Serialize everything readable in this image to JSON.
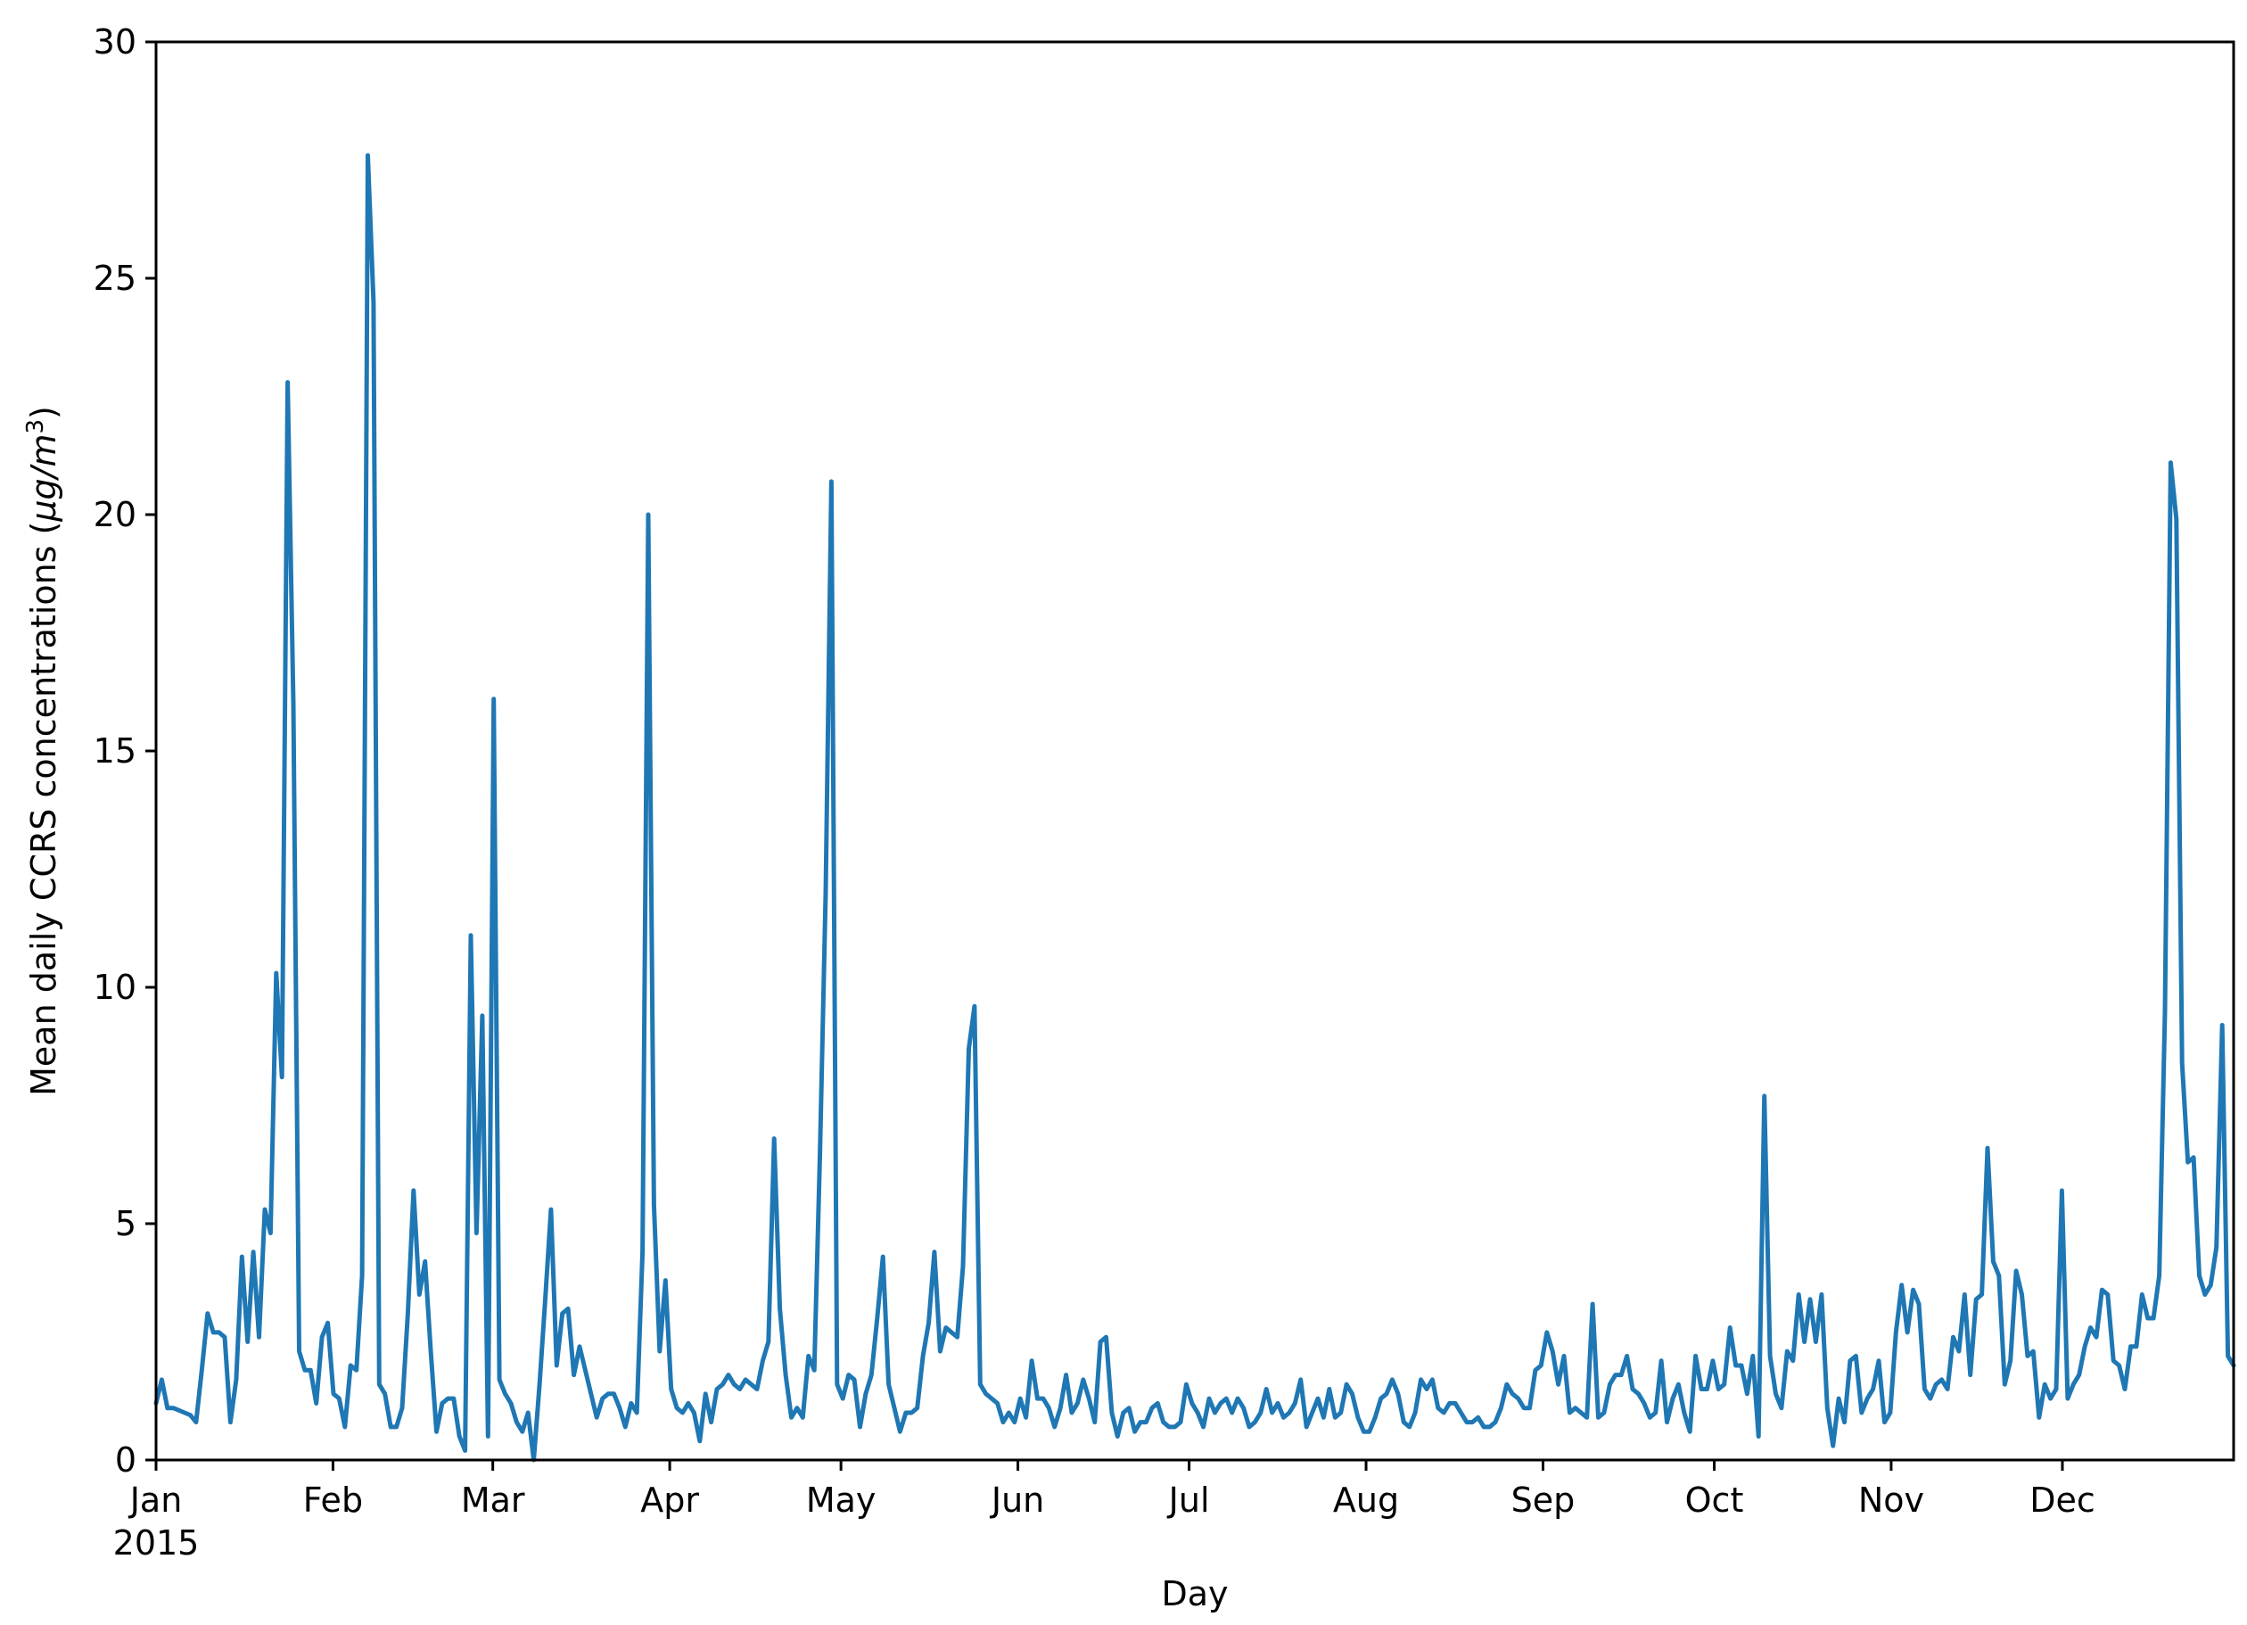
{
  "chart_data": {
    "type": "line",
    "xlabel": "Day",
    "ylabel": "Mean daily CCRS concentrations (μg/m³)",
    "ylabel_parts": {
      "main": "Mean daily CCRS concentrations (",
      "unit_base": "μg/m",
      "unit_exp": "3",
      "close": ")"
    },
    "ylim": [
      0,
      30
    ],
    "yticks": [
      0,
      5,
      10,
      15,
      20,
      25,
      30
    ],
    "x_range": [
      "2015-01-01",
      "2015-12-31"
    ],
    "xticks": [
      {
        "date": "2015-01-01",
        "label": "Jan",
        "sublabel": "2015"
      },
      {
        "date": "2015-02-01",
        "label": "Feb"
      },
      {
        "date": "2015-03-01",
        "label": "Mar"
      },
      {
        "date": "2015-04-01",
        "label": "Apr"
      },
      {
        "date": "2015-05-01",
        "label": "May"
      },
      {
        "date": "2015-06-01",
        "label": "Jun"
      },
      {
        "date": "2015-07-01",
        "label": "Jul"
      },
      {
        "date": "2015-08-01",
        "label": "Aug"
      },
      {
        "date": "2015-09-01",
        "label": "Sep"
      },
      {
        "date": "2015-10-01",
        "label": "Oct"
      },
      {
        "date": "2015-11-01",
        "label": "Nov"
      },
      {
        "date": "2015-12-01",
        "label": "Dec"
      }
    ],
    "grid": false,
    "line_color": "#1f77b4",
    "series": [
      {
        "x_start": "2015-01-01",
        "x_step_days": 1,
        "values": [
          1.2,
          1.7,
          1.1,
          1.1,
          1.05,
          1.0,
          0.95,
          0.8,
          1.9,
          3.1,
          2.7,
          2.7,
          2.6,
          0.8,
          1.7,
          4.3,
          2.5,
          4.4,
          2.6,
          5.3,
          4.8,
          10.3,
          8.1,
          22.8,
          16.0,
          2.3,
          1.9,
          1.9,
          1.2,
          2.6,
          2.9,
          1.4,
          1.3,
          0.7,
          2.0,
          1.9,
          3.9,
          27.6,
          24.5,
          1.6,
          1.4,
          0.7,
          0.7,
          1.1,
          3.1,
          5.7,
          3.5,
          4.2,
          2.3,
          0.6,
          1.2,
          1.3,
          1.3,
          0.5,
          0.2,
          11.1,
          4.8,
          9.4,
          0.5,
          16.1,
          1.7,
          1.4,
          1.2,
          0.8,
          0.6,
          1.0,
          0.0,
          1.6,
          3.4,
          5.3,
          2.0,
          3.1,
          3.2,
          1.8,
          2.4,
          1.9,
          1.4,
          0.9,
          1.3,
          1.4,
          1.4,
          1.1,
          0.7,
          1.2,
          1.0,
          4.4,
          20.0,
          5.4,
          2.3,
          3.8,
          1.5,
          1.1,
          1.0,
          1.2,
          1.0,
          0.4,
          1.4,
          0.8,
          1.5,
          1.6,
          1.8,
          1.6,
          1.5,
          1.7,
          1.6,
          1.5,
          2.1,
          2.5,
          6.8,
          3.2,
          1.8,
          0.9,
          1.1,
          0.9,
          2.2,
          1.9,
          6.5,
          12.0,
          20.7,
          1.6,
          1.3,
          1.8,
          1.7,
          0.7,
          1.4,
          1.8,
          3.0,
          4.3,
          1.6,
          1.1,
          0.6,
          1.0,
          1.0,
          1.1,
          2.2,
          2.9,
          4.4,
          2.3,
          2.8,
          2.7,
          2.6,
          4.1,
          8.7,
          9.6,
          1.6,
          1.4,
          1.3,
          1.2,
          0.8,
          1.0,
          0.8,
          1.3,
          0.9,
          2.1,
          1.3,
          1.3,
          1.1,
          0.7,
          1.1,
          1.8,
          1.0,
          1.2,
          1.7,
          1.3,
          0.8,
          2.5,
          2.6,
          1.0,
          0.5,
          1.0,
          1.1,
          0.6,
          0.8,
          0.8,
          1.1,
          1.2,
          0.8,
          0.7,
          0.7,
          0.8,
          1.6,
          1.2,
          1.0,
          0.7,
          1.3,
          1.0,
          1.2,
          1.3,
          1.0,
          1.3,
          1.1,
          0.7,
          0.8,
          1.0,
          1.5,
          1.0,
          1.2,
          0.9,
          1.0,
          1.2,
          1.7,
          0.7,
          1.0,
          1.3,
          0.9,
          1.5,
          0.9,
          1.0,
          1.6,
          1.4,
          0.9,
          0.6,
          0.6,
          0.9,
          1.3,
          1.4,
          1.7,
          1.4,
          0.8,
          0.7,
          1.0,
          1.7,
          1.5,
          1.7,
          1.1,
          1.0,
          1.2,
          1.2,
          1.0,
          0.8,
          0.8,
          0.9,
          0.7,
          0.7,
          0.8,
          1.1,
          1.6,
          1.4,
          1.3,
          1.1,
          1.1,
          1.9,
          2.0,
          2.7,
          2.3,
          1.6,
          2.2,
          1.0,
          1.1,
          1.0,
          0.9,
          3.3,
          0.9,
          1.0,
          1.6,
          1.8,
          1.8,
          2.2,
          1.5,
          1.4,
          1.2,
          0.9,
          1.0,
          2.1,
          0.8,
          1.3,
          1.6,
          1.0,
          0.6,
          2.2,
          1.5,
          1.5,
          2.1,
          1.5,
          1.6,
          2.8,
          2.0,
          2.0,
          1.4,
          2.2,
          0.5,
          7.7,
          2.2,
          1.4,
          1.1,
          2.3,
          2.1,
          3.5,
          2.5,
          3.4,
          2.5,
          3.5,
          1.1,
          0.3,
          1.3,
          0.8,
          2.1,
          2.2,
          1.0,
          1.3,
          1.5,
          2.1,
          0.8,
          1.0,
          2.7,
          3.7,
          2.7,
          3.6,
          3.3,
          1.5,
          1.3,
          1.6,
          1.7,
          1.5,
          2.6,
          2.3,
          3.5,
          1.8,
          3.4,
          3.5,
          6.6,
          4.2,
          3.9,
          1.6,
          2.1,
          4.0,
          3.5,
          2.2,
          2.3,
          0.9,
          1.6,
          1.3,
          1.5,
          5.7,
          1.3,
          1.6,
          1.8,
          2.4,
          2.8,
          2.6,
          3.6,
          3.5,
          2.1,
          2.0,
          1.5,
          2.4,
          2.4,
          3.5,
          3.0,
          3.0,
          3.9,
          9.5,
          21.1,
          19.9,
          8.4,
          6.3,
          6.4,
          3.9,
          3.5,
          3.7,
          4.5,
          9.2,
          2.2,
          2.0
        ]
      }
    ]
  }
}
